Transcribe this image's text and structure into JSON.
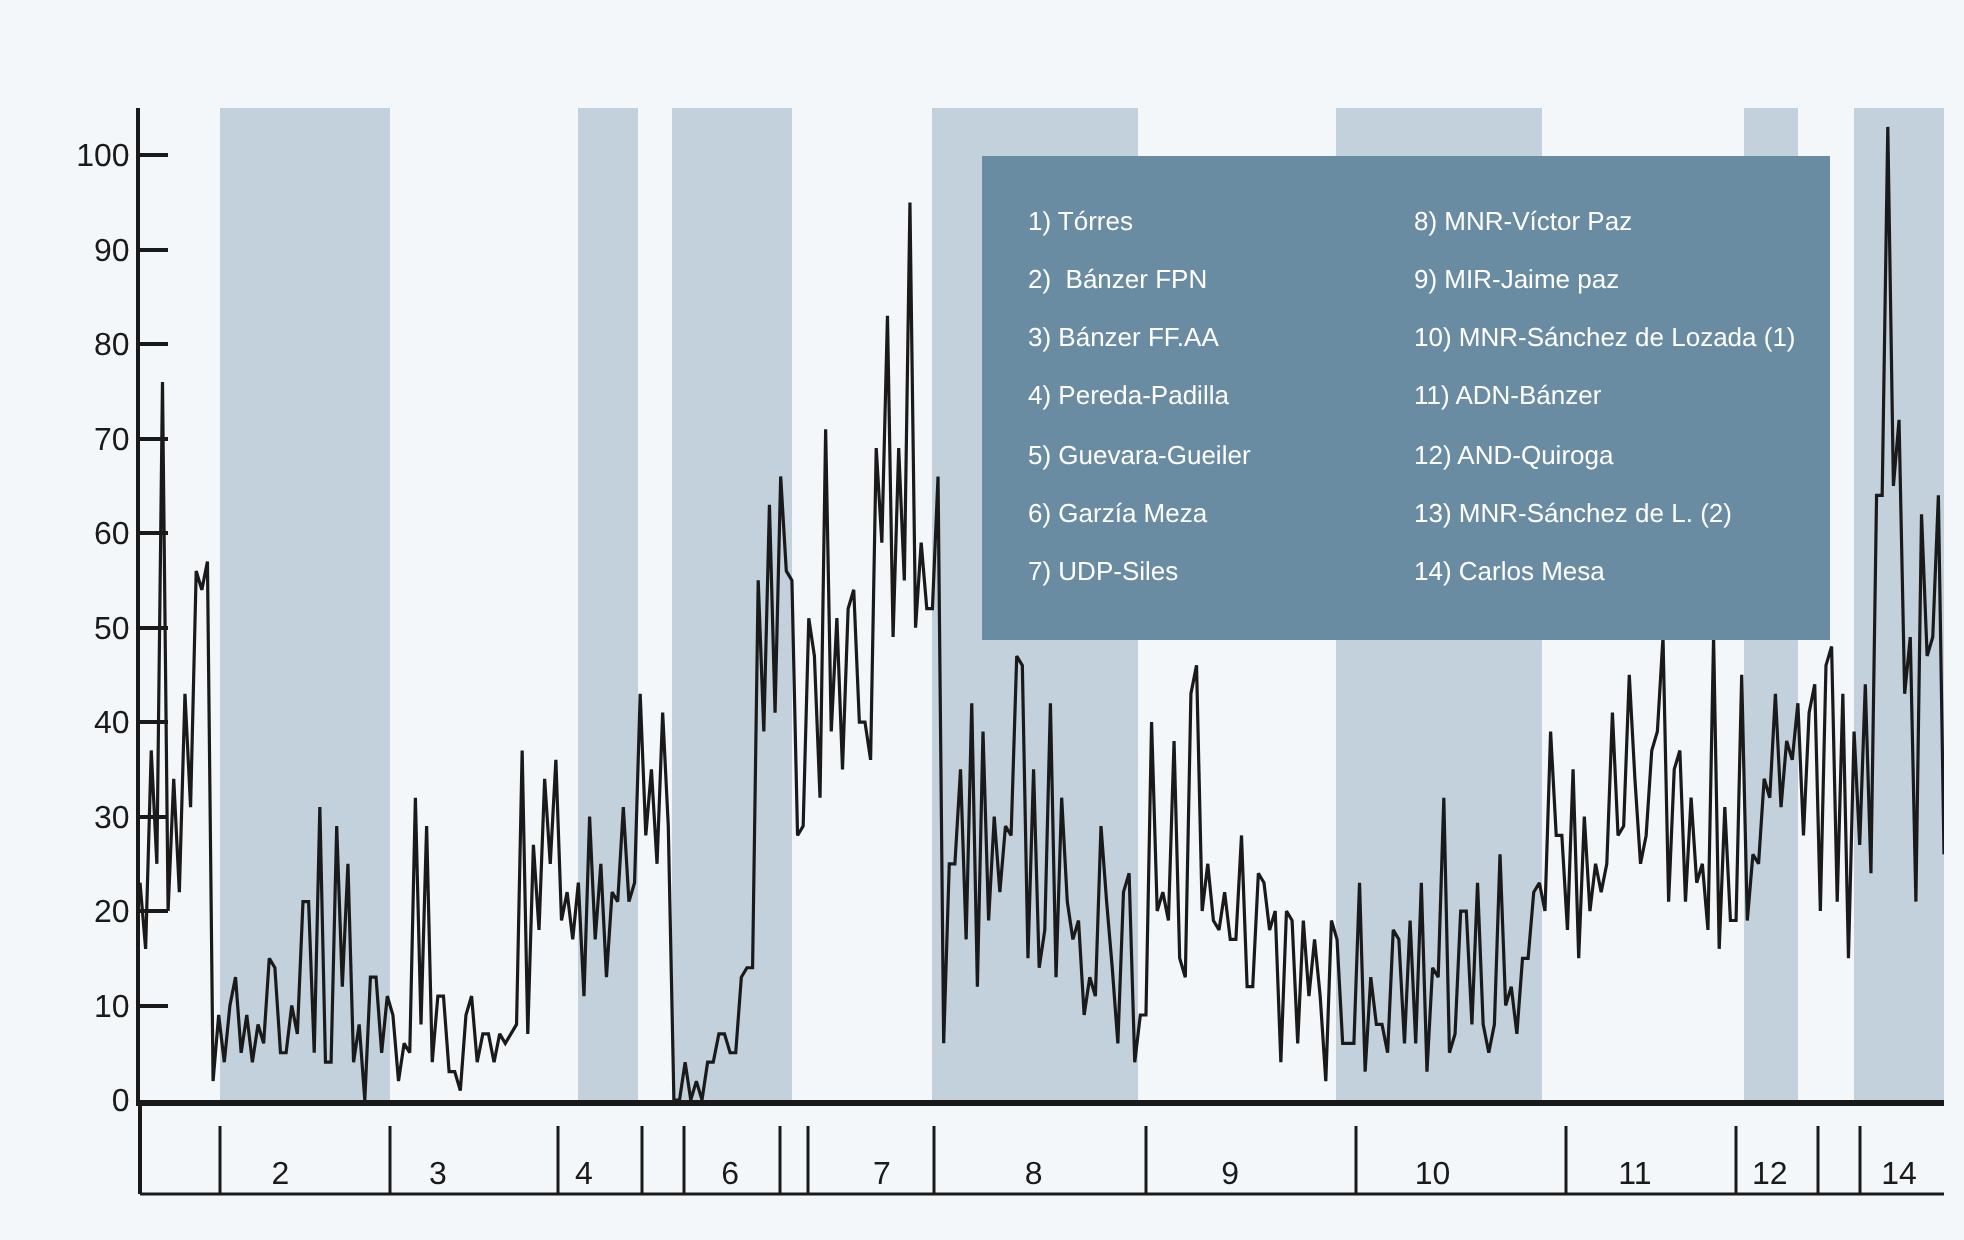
{
  "chart_data": {
    "type": "line",
    "categories": [
      null,
      null,
      null,
      null,
      null,
      null,
      null,
      null,
      null,
      null,
      null,
      null,
      null,
      null,
      null,
      null,
      null,
      null,
      null,
      null,
      null,
      null,
      null,
      null,
      null,
      "2",
      null,
      null,
      null,
      null,
      null,
      null,
      null,
      null,
      null,
      null,
      null,
      null,
      null,
      null,
      null,
      null,
      null,
      null,
      null,
      null,
      null,
      null,
      null,
      null,
      null,
      null,
      null,
      "3",
      null,
      null,
      null,
      null,
      null,
      null,
      null,
      null,
      null,
      null,
      null,
      null,
      null,
      null,
      null,
      null,
      null,
      null,
      null,
      null,
      null,
      null,
      null,
      null,
      null,
      "4",
      null,
      null,
      null,
      null,
      null,
      null,
      null,
      null,
      null,
      null,
      null,
      null,
      null,
      null,
      null,
      null,
      null,
      null,
      null,
      null,
      null,
      null,
      null,
      null,
      null,
      "6",
      null,
      null,
      null,
      null,
      null,
      null,
      null,
      null,
      null,
      null,
      null,
      null,
      null,
      null,
      null,
      null,
      null,
      null,
      null,
      null,
      null,
      null,
      null,
      null,
      null,
      null,
      "7",
      null,
      null,
      null,
      null,
      null,
      null,
      null,
      null,
      null,
      null,
      null,
      null,
      null,
      null,
      null,
      null,
      null,
      null,
      null,
      null,
      null,
      null,
      null,
      null,
      null,
      null,
      "8",
      null,
      null,
      null,
      null,
      null,
      null,
      null,
      null,
      null,
      null,
      null,
      null,
      null,
      null,
      null,
      null,
      null,
      null,
      null,
      null,
      null,
      null,
      null,
      null,
      null,
      null,
      null,
      null,
      null,
      null,
      null,
      null,
      null,
      null,
      "9",
      null,
      null,
      null,
      null,
      null,
      null,
      null,
      null,
      null,
      null,
      null,
      null,
      null,
      null,
      null,
      null,
      null,
      null,
      null,
      null,
      null,
      null,
      null,
      null,
      null,
      null,
      null,
      null,
      null,
      null,
      null,
      null,
      null,
      null,
      null,
      "10",
      null,
      null,
      null,
      null,
      null,
      null,
      null,
      null,
      null,
      null,
      null,
      null,
      null,
      null,
      null,
      null,
      null,
      null,
      null,
      null,
      null,
      null,
      null,
      null,
      null,
      null,
      null,
      null,
      null,
      null,
      null,
      null,
      null,
      null,
      null,
      "11",
      null,
      null,
      null,
      null,
      null,
      null,
      null,
      null,
      null,
      null,
      null,
      null,
      null,
      null,
      null,
      null,
      null,
      null,
      null,
      null,
      null,
      null,
      null,
      "12",
      null,
      null,
      null,
      null,
      null,
      null,
      null,
      null,
      null,
      null,
      null,
      null,
      null,
      null,
      null,
      null,
      null,
      null,
      null,
      null,
      null,
      null,
      "14",
      null,
      null,
      null,
      null,
      null,
      null,
      null,
      null
    ],
    "series": [
      {
        "color": "#1a1a1a",
        "values": [
          23,
          16,
          37,
          25,
          76,
          20,
          34,
          22,
          43,
          31,
          56,
          54,
          57,
          2,
          9,
          4,
          10,
          13,
          5,
          9,
          4,
          8,
          6,
          15,
          14,
          5,
          5,
          10,
          7,
          21,
          21,
          5,
          31,
          4,
          4,
          29,
          12,
          25,
          4,
          8,
          0,
          13,
          13,
          5,
          11,
          9,
          2,
          6,
          5,
          32,
          8,
          29,
          4,
          11,
          11,
          3,
          3,
          1,
          9,
          11,
          4,
          7,
          7,
          4,
          7,
          6,
          7,
          8,
          37,
          7,
          27,
          18,
          34,
          25,
          36,
          19,
          22,
          17,
          23,
          11,
          30,
          17,
          25,
          13,
          22,
          21,
          31,
          21,
          23,
          43,
          28,
          35,
          25,
          41,
          29,
          0,
          0,
          4,
          0,
          2,
          0,
          4,
          4,
          7,
          7,
          5,
          5,
          13,
          14,
          14,
          55,
          39,
          63,
          41,
          66,
          56,
          55,
          28,
          29,
          51,
          47,
          32,
          71,
          39,
          51,
          35,
          52,
          54,
          40,
          40,
          36,
          69,
          59,
          83,
          49,
          69,
          55,
          95,
          50,
          59,
          52,
          52,
          66,
          6,
          25,
          25,
          35,
          17,
          42,
          12,
          39,
          19,
          30,
          22,
          29,
          28,
          47,
          46,
          15,
          35,
          14,
          18,
          42,
          13,
          32,
          21,
          17,
          19,
          9,
          13,
          11,
          29,
          21,
          14,
          6,
          22,
          24,
          4,
          9,
          9,
          40,
          20,
          22,
          19,
          38,
          15,
          13,
          43,
          46,
          20,
          25,
          19,
          18,
          22,
          17,
          17,
          28,
          12,
          12,
          24,
          23,
          18,
          20,
          4,
          20,
          19,
          6,
          19,
          11,
          17,
          11,
          2,
          19,
          17,
          6,
          6,
          6,
          23,
          3,
          13,
          8,
          8,
          5,
          18,
          17,
          6,
          19,
          6,
          23,
          3,
          14,
          13,
          32,
          5,
          7,
          20,
          20,
          8,
          23,
          8,
          5,
          8,
          26,
          10,
          12,
          7,
          15,
          15,
          22,
          23,
          20,
          39,
          28,
          28,
          18,
          35,
          15,
          30,
          20,
          25,
          22,
          25,
          41,
          28,
          29,
          45,
          34,
          25,
          28,
          37,
          39,
          49,
          21,
          35,
          37,
          21,
          32,
          23,
          25,
          18,
          49,
          16,
          31,
          19,
          19,
          45,
          19,
          26,
          25,
          34,
          32,
          43,
          31,
          38,
          36,
          42,
          28,
          41,
          44,
          20,
          46,
          48,
          21,
          43,
          15,
          39,
          27,
          44,
          24,
          64,
          64,
          103,
          65,
          72,
          43,
          49,
          21,
          62,
          47,
          49,
          64,
          26
        ]
      }
    ],
    "ylim": [
      0,
      105
    ],
    "yticks": [
      0,
      10,
      20,
      30,
      40,
      50,
      60,
      70,
      80,
      90,
      100
    ],
    "annotations": [
      "1) Tórres",
      "2)  Bánzer FPN",
      "3) Bánzer FF.AA",
      "4) Pereda-Padilla",
      "5) Guevara-Gueiler",
      "6) Garzía Meza",
      "7) UDP-Siles",
      "8) MNR-Víctor Paz",
      "9) MIR-Jaime paz",
      "10) MNR-Sánchez de Lozada (1)",
      "11) ADN-Bánzer",
      "12) AND-Quiroga",
      "13) MNR-Sánchez de L. (2)",
      "14) Carlos Mesa"
    ],
    "grid": false,
    "marker": "none",
    "line_style": "solid"
  }
}
